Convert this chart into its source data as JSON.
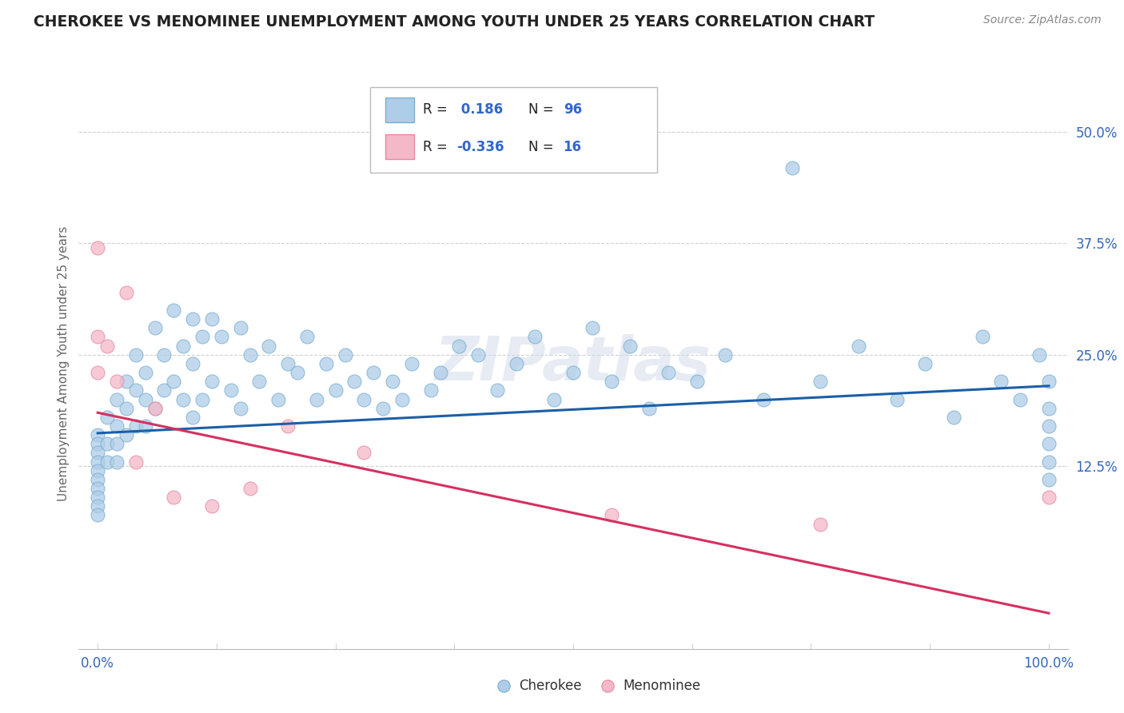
{
  "title": "CHEROKEE VS MENOMINEE UNEMPLOYMENT AMONG YOUTH UNDER 25 YEARS CORRELATION CHART",
  "source_text": "Source: ZipAtlas.com",
  "ylabel": "Unemployment Among Youth under 25 years",
  "xlim": [
    -0.02,
    1.02
  ],
  "ylim": [
    -0.08,
    0.56
  ],
  "xtick_positions": [
    0.0,
    1.0
  ],
  "xtick_labels": [
    "0.0%",
    "100.0%"
  ],
  "ytick_positions": [
    0.125,
    0.25,
    0.375,
    0.5
  ],
  "ytick_labels": [
    "12.5%",
    "25.0%",
    "37.5%",
    "50.0%"
  ],
  "watermark": "ZIPatlas",
  "cherokee_R": 0.186,
  "cherokee_N": 96,
  "menominee_R": -0.336,
  "menominee_N": 16,
  "cherokee_color": "#aecde8",
  "cherokee_edge_color": "#7aaed0",
  "cherokee_line_color": "#1a5fa8",
  "menominee_color": "#f4b8c8",
  "menominee_edge_color": "#e888a0",
  "menominee_line_color": "#d63060",
  "cherokee_scatter_x": [
    0.0,
    0.0,
    0.0,
    0.0,
    0.0,
    0.0,
    0.0,
    0.0,
    0.0,
    0.0,
    0.01,
    0.01,
    0.01,
    0.02,
    0.02,
    0.02,
    0.02,
    0.03,
    0.03,
    0.03,
    0.04,
    0.04,
    0.04,
    0.05,
    0.05,
    0.05,
    0.06,
    0.06,
    0.07,
    0.07,
    0.08,
    0.08,
    0.09,
    0.09,
    0.1,
    0.1,
    0.1,
    0.11,
    0.11,
    0.12,
    0.12,
    0.13,
    0.14,
    0.15,
    0.15,
    0.16,
    0.17,
    0.18,
    0.19,
    0.2,
    0.21,
    0.22,
    0.23,
    0.24,
    0.25,
    0.26,
    0.27,
    0.28,
    0.29,
    0.3,
    0.31,
    0.32,
    0.33,
    0.35,
    0.36,
    0.38,
    0.4,
    0.42,
    0.44,
    0.46,
    0.48,
    0.5,
    0.52,
    0.54,
    0.56,
    0.58,
    0.6,
    0.63,
    0.66,
    0.7,
    0.73,
    0.76,
    0.8,
    0.84,
    0.87,
    0.9,
    0.93,
    0.95,
    0.97,
    0.99,
    1.0,
    1.0,
    1.0,
    1.0,
    1.0,
    1.0
  ],
  "cherokee_scatter_y": [
    0.16,
    0.15,
    0.14,
    0.13,
    0.12,
    0.11,
    0.1,
    0.09,
    0.08,
    0.07,
    0.18,
    0.15,
    0.13,
    0.2,
    0.17,
    0.15,
    0.13,
    0.22,
    0.19,
    0.16,
    0.25,
    0.21,
    0.17,
    0.23,
    0.2,
    0.17,
    0.28,
    0.19,
    0.25,
    0.21,
    0.3,
    0.22,
    0.26,
    0.2,
    0.29,
    0.24,
    0.18,
    0.27,
    0.2,
    0.29,
    0.22,
    0.27,
    0.21,
    0.28,
    0.19,
    0.25,
    0.22,
    0.26,
    0.2,
    0.24,
    0.23,
    0.27,
    0.2,
    0.24,
    0.21,
    0.25,
    0.22,
    0.2,
    0.23,
    0.19,
    0.22,
    0.2,
    0.24,
    0.21,
    0.23,
    0.26,
    0.25,
    0.21,
    0.24,
    0.27,
    0.2,
    0.23,
    0.28,
    0.22,
    0.26,
    0.19,
    0.23,
    0.22,
    0.25,
    0.2,
    0.46,
    0.22,
    0.26,
    0.2,
    0.24,
    0.18,
    0.27,
    0.22,
    0.2,
    0.25,
    0.22,
    0.19,
    0.17,
    0.15,
    0.13,
    0.11
  ],
  "menominee_scatter_x": [
    0.0,
    0.0,
    0.0,
    0.01,
    0.02,
    0.03,
    0.04,
    0.06,
    0.08,
    0.12,
    0.16,
    0.2,
    0.28,
    0.54,
    0.76,
    1.0
  ],
  "menominee_scatter_y": [
    0.37,
    0.27,
    0.23,
    0.26,
    0.22,
    0.32,
    0.13,
    0.19,
    0.09,
    0.08,
    0.1,
    0.17,
    0.14,
    0.07,
    0.06,
    0.09
  ],
  "cherokee_trend_y_start": 0.162,
  "cherokee_trend_y_end": 0.215,
  "menominee_trend_y_start": 0.185,
  "menominee_trend_y_end": -0.04,
  "background_color": "#ffffff",
  "grid_color": "#cccccc",
  "title_color": "#222222",
  "source_color": "#888888",
  "ylabel_color": "#666666"
}
